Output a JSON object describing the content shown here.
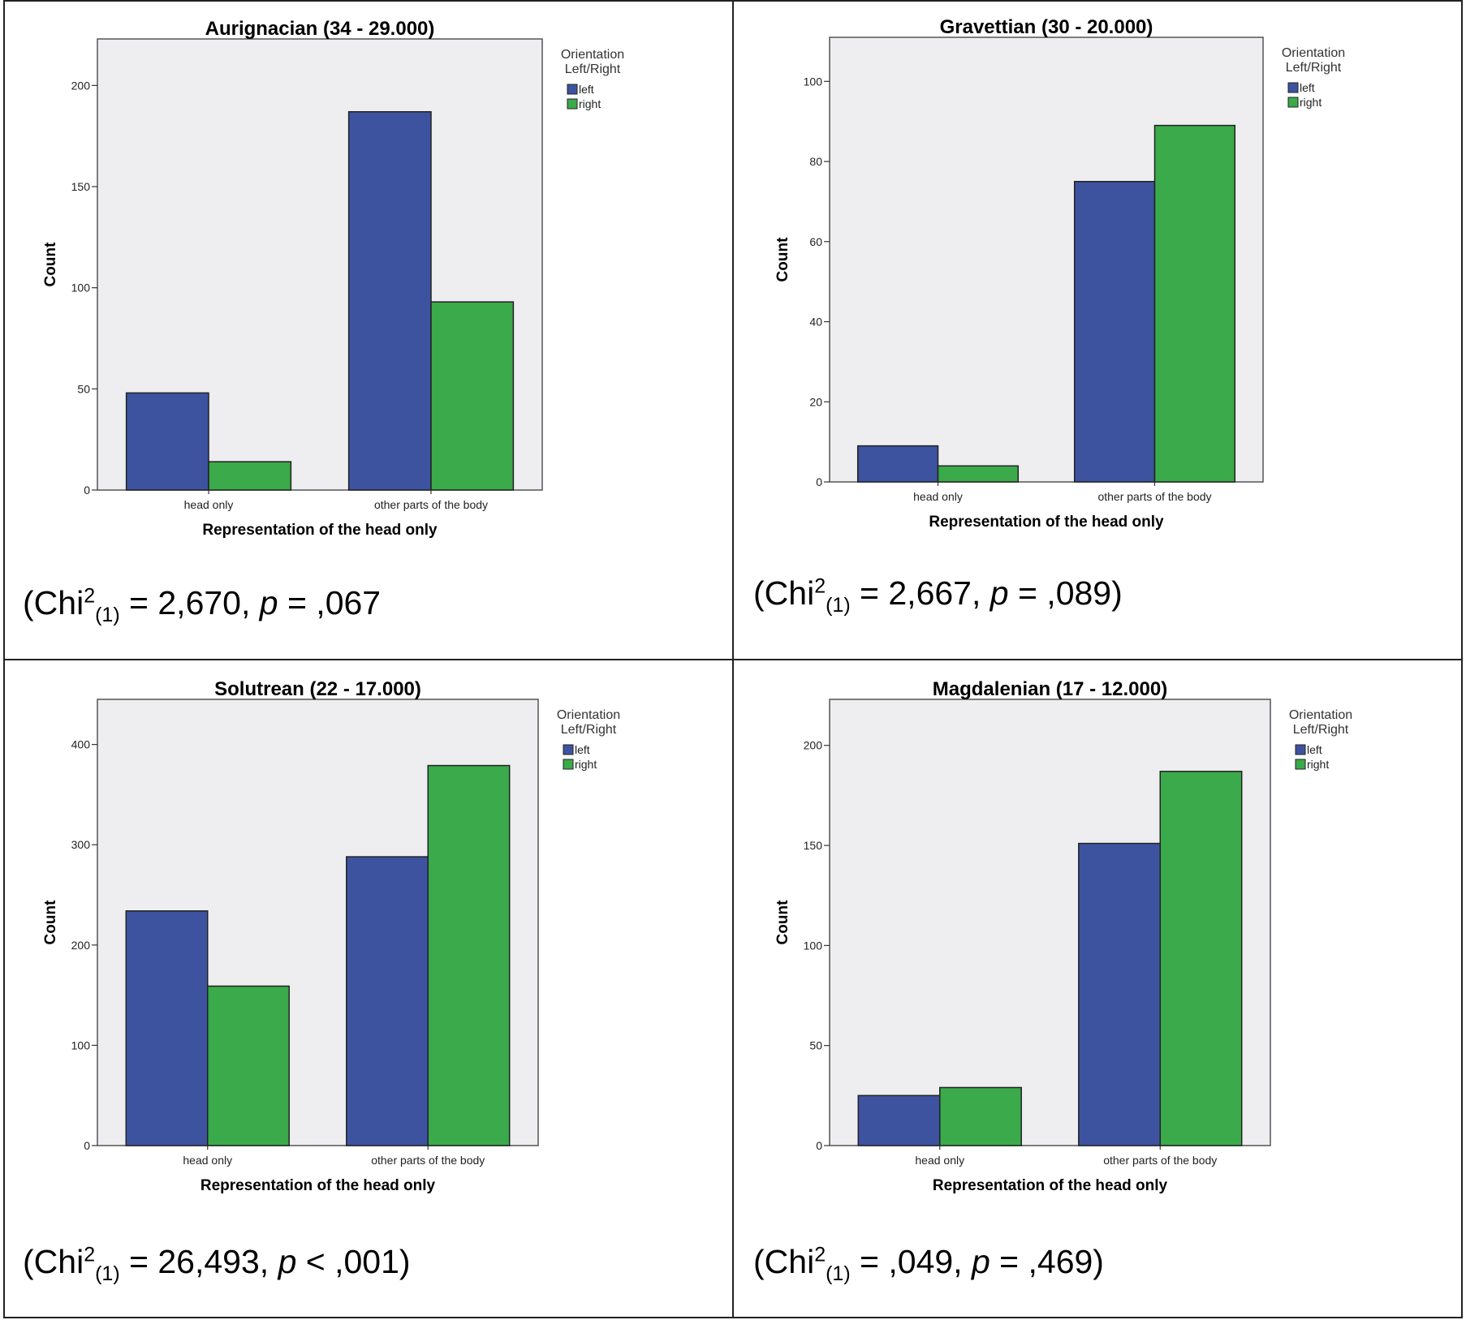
{
  "colors": {
    "left": "#3D53A0",
    "right": "#3AAA4A",
    "plot_bg": "#EEEEF1",
    "frame": "#222222"
  },
  "chart_data": [
    {
      "type": "bar",
      "title": "Aurignacian (34 - 29.000)",
      "categories": [
        "head only",
        "other parts of the body"
      ],
      "series": [
        {
          "name": "left",
          "values": [
            48,
            187
          ]
        },
        {
          "name": "right",
          "values": [
            14,
            93
          ]
        }
      ],
      "xlabel": "Representation of the head only",
      "ylabel": "Count",
      "ylim": [
        0,
        223
      ],
      "yticks": [
        0,
        50,
        100,
        150,
        200
      ],
      "legend_title": [
        "Orientation",
        "Left/Right"
      ],
      "legend_position": "top-right",
      "stat": {
        "pre": "(Chi",
        "sup": "2",
        "sub": "(1)",
        "mid": " = 2,670, ",
        "p": "p",
        "post": " = ,067"
      }
    },
    {
      "type": "bar",
      "title": "Gravettian (30 - 20.000)",
      "categories": [
        "head only",
        "other parts of the body"
      ],
      "series": [
        {
          "name": "left",
          "values": [
            9,
            75
          ]
        },
        {
          "name": "right",
          "values": [
            4,
            89
          ]
        }
      ],
      "xlabel": "Representation of the head only",
      "ylabel": "Count",
      "ylim": [
        0,
        111
      ],
      "yticks": [
        0,
        20,
        40,
        60,
        80,
        100
      ],
      "legend_title": [
        "Orientation",
        "Left/Right"
      ],
      "legend_position": "top-right",
      "stat": {
        "pre": "(Chi",
        "sup": "2",
        "sub": "(1)",
        "mid": " = 2,667, ",
        "p": "p",
        "post": " = ,089)"
      }
    },
    {
      "type": "bar",
      "title": "Solutrean (22 - 17.000)",
      "categories": [
        "head only",
        "other parts of the body"
      ],
      "series": [
        {
          "name": "left",
          "values": [
            234,
            288
          ]
        },
        {
          "name": "right",
          "values": [
            159,
            379
          ]
        }
      ],
      "xlabel": "Representation of the head only",
      "ylabel": "Count",
      "ylim": [
        0,
        445
      ],
      "yticks": [
        0,
        100,
        200,
        300,
        400
      ],
      "legend_title": [
        "Orientation",
        "Left/Right"
      ],
      "legend_position": "top-right",
      "stat": {
        "pre": "(Chi",
        "sup": "2",
        "sub": "(1)",
        "mid": " = 26,493, ",
        "p": "p",
        "post": " < ,001)"
      }
    },
    {
      "type": "bar",
      "title": "Magdalenian (17 - 12.000)",
      "categories": [
        "head only",
        "other parts of the body"
      ],
      "series": [
        {
          "name": "left",
          "values": [
            25,
            151
          ]
        },
        {
          "name": "right",
          "values": [
            29,
            187
          ]
        }
      ],
      "xlabel": "Representation of the head only",
      "ylabel": "Count",
      "ylim": [
        0,
        223
      ],
      "yticks": [
        0,
        50,
        100,
        150,
        200
      ],
      "legend_title": [
        "Orientation",
        "Left/Right"
      ],
      "legend_position": "top-right",
      "stat": {
        "pre": "(Chi",
        "sup": "2",
        "sub": "(1)",
        "mid": " = ,049, ",
        "p": "p",
        "post": " = ,469)"
      }
    }
  ]
}
